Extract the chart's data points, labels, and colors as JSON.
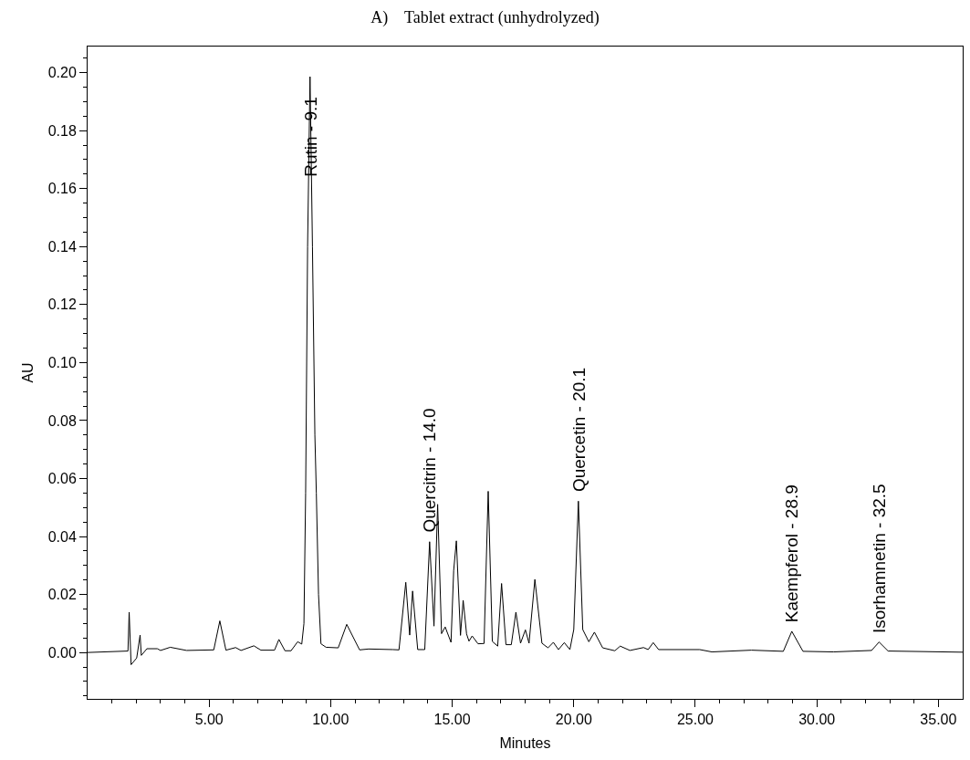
{
  "chart_data": {
    "type": "line",
    "title": "A)    Tablet extract (unhydrolyzed)",
    "xlabel": "Minutes",
    "ylabel": "AU",
    "series": [
      {
        "color": "#000000",
        "x": [
          0,
          1.66,
          1.71,
          1.79,
          2.02,
          2.16,
          2.21,
          2.44,
          2.87,
          3.0,
          3.4,
          4.07,
          5.19,
          5.44,
          5.69,
          6.09,
          6.31,
          6.84,
          7.13,
          7.69,
          7.87,
          8.12,
          8.37,
          8.64,
          8.81,
          8.9,
          8.97,
          9.05,
          9.15,
          9.25,
          9.35,
          9.41,
          9.5,
          9.6,
          9.81,
          10.31,
          10.66,
          11.19,
          11.56,
          12.56,
          12.81,
          13.09,
          13.25,
          13.37,
          13.58,
          13.87,
          14.07,
          14.25,
          14.4,
          14.56,
          14.71,
          14.95,
          15.06,
          15.17,
          15.34,
          15.45,
          15.59,
          15.69,
          15.82,
          16.06,
          16.31,
          16.48,
          16.65,
          16.87,
          17.03,
          17.21,
          17.43,
          17.62,
          17.81,
          18.01,
          18.16,
          18.4,
          18.69,
          18.94,
          19.16,
          19.37,
          19.61,
          19.84,
          20.0,
          20.19,
          20.37,
          20.62,
          20.85,
          21.19,
          21.69,
          21.91,
          22.31,
          22.87,
          23.06,
          23.27,
          23.49,
          25.18,
          25.68,
          27.31,
          28.62,
          28.97,
          29.43,
          30.68,
          32.25,
          32.56,
          32.93,
          36.0
        ],
        "values": [
          0,
          0.0005,
          0.0139,
          -0.0042,
          -0.0019,
          0.006,
          -0.001,
          0.0013,
          0.0013,
          0.0007,
          0.0018,
          0.0007,
          0.0009,
          0.0109,
          0.0008,
          0.0017,
          0.0007,
          0.0023,
          0.0008,
          0.0008,
          0.0045,
          0.0006,
          0.0006,
          0.0037,
          0.0029,
          0.01,
          0.055,
          0.14,
          0.1986,
          0.14,
          0.075,
          0.055,
          0.02,
          0.003,
          0.0018,
          0.0016,
          0.0097,
          0.0009,
          0.0012,
          0.001,
          0.0009,
          0.0242,
          0.006,
          0.0212,
          0.001,
          0.001,
          0.0382,
          0.0091,
          0.0511,
          0.0065,
          0.0088,
          0.0035,
          0.0283,
          0.0385,
          0.0059,
          0.018,
          0.0064,
          0.0039,
          0.0057,
          0.003,
          0.0031,
          0.0556,
          0.0038,
          0.0022,
          0.0238,
          0.0027,
          0.0027,
          0.0139,
          0.0032,
          0.0078,
          0.0032,
          0.0252,
          0.0032,
          0.0016,
          0.0035,
          0.001,
          0.0034,
          0.001,
          0.0079,
          0.0522,
          0.0079,
          0.0037,
          0.007,
          0.0016,
          0.0006,
          0.0022,
          0.0007,
          0.0017,
          0.001,
          0.0034,
          0.001,
          0.001,
          0.0002,
          0.0008,
          0.0004,
          0.0073,
          0.0004,
          0.0002,
          0.0007,
          0.0036,
          0.0005,
          0.0001
        ]
      }
    ],
    "annotations": [
      {
        "text": "Rutin - 9.1",
        "x": 9.15,
        "y": 0.1986
      },
      {
        "text": "Quercitrin - 14.0",
        "x": 14.07,
        "y": 0.0382
      },
      {
        "text": "Quercetin - 20.1",
        "x": 20.19,
        "y": 0.0522
      },
      {
        "text": "Kaempferol - 28.9",
        "x": 28.97,
        "y": 0.0073
      },
      {
        "text": "Isorhamnetin - 32.5",
        "x": 32.56,
        "y": 0.0036
      }
    ],
    "xlim": [
      0,
      36
    ],
    "xticks": [
      {
        "value": 1,
        "label": null
      },
      {
        "value": 2,
        "label": null
      },
      {
        "value": 3,
        "label": null
      },
      {
        "value": 4,
        "label": null
      },
      {
        "value": 5,
        "label": "5.00"
      },
      {
        "value": 6,
        "label": null
      },
      {
        "value": 7,
        "label": null
      },
      {
        "value": 8,
        "label": null
      },
      {
        "value": 9,
        "label": null
      },
      {
        "value": 10,
        "label": "10.00"
      },
      {
        "value": 11,
        "label": null
      },
      {
        "value": 12,
        "label": null
      },
      {
        "value": 13,
        "label": null
      },
      {
        "value": 14,
        "label": null
      },
      {
        "value": 15,
        "label": "15.00"
      },
      {
        "value": 16,
        "label": null
      },
      {
        "value": 17,
        "label": null
      },
      {
        "value": 18,
        "label": null
      },
      {
        "value": 19,
        "label": null
      },
      {
        "value": 20,
        "label": "20.00"
      },
      {
        "value": 21,
        "label": null
      },
      {
        "value": 22,
        "label": null
      },
      {
        "value": 23,
        "label": null
      },
      {
        "value": 24,
        "label": null
      },
      {
        "value": 25,
        "label": "25.00"
      },
      {
        "value": 26,
        "label": null
      },
      {
        "value": 27,
        "label": null
      },
      {
        "value": 28,
        "label": null
      },
      {
        "value": 29,
        "label": null
      },
      {
        "value": 30,
        "label": "30.00"
      },
      {
        "value": 31,
        "label": null
      },
      {
        "value": 32,
        "label": null
      },
      {
        "value": 33,
        "label": null
      },
      {
        "value": 34,
        "label": null
      },
      {
        "value": 35,
        "label": "35.00"
      }
    ],
    "ylim": [
      -0.016,
      0.209
    ],
    "yticks": [
      {
        "value": -0.015,
        "label": null
      },
      {
        "value": -0.01,
        "label": null
      },
      {
        "value": -0.005,
        "label": null
      },
      {
        "value": 0,
        "label": "0.00"
      },
      {
        "value": 0.005,
        "label": null
      },
      {
        "value": 0.01,
        "label": null
      },
      {
        "value": 0.015,
        "label": null
      },
      {
        "value": 0.02,
        "label": "0.02"
      },
      {
        "value": 0.025,
        "label": null
      },
      {
        "value": 0.03,
        "label": null
      },
      {
        "value": 0.035,
        "label": null
      },
      {
        "value": 0.04,
        "label": "0.04"
      },
      {
        "value": 0.045,
        "label": null
      },
      {
        "value": 0.05,
        "label": null
      },
      {
        "value": 0.055,
        "label": null
      },
      {
        "value": 0.06,
        "label": "0.06"
      },
      {
        "value": 0.065,
        "label": null
      },
      {
        "value": 0.07,
        "label": null
      },
      {
        "value": 0.075,
        "label": null
      },
      {
        "value": 0.08,
        "label": "0.08"
      },
      {
        "value": 0.085,
        "label": null
      },
      {
        "value": 0.09,
        "label": null
      },
      {
        "value": 0.095,
        "label": null
      },
      {
        "value": 0.1,
        "label": "0.10"
      },
      {
        "value": 0.105,
        "label": null
      },
      {
        "value": 0.11,
        "label": null
      },
      {
        "value": 0.115,
        "label": null
      },
      {
        "value": 0.12,
        "label": "0.12"
      },
      {
        "value": 0.125,
        "label": null
      },
      {
        "value": 0.13,
        "label": null
      },
      {
        "value": 0.135,
        "label": null
      },
      {
        "value": 0.14,
        "label": "0.14"
      },
      {
        "value": 0.145,
        "label": null
      },
      {
        "value": 0.15,
        "label": null
      },
      {
        "value": 0.155,
        "label": null
      },
      {
        "value": 0.16,
        "label": "0.16"
      },
      {
        "value": 0.165,
        "label": null
      },
      {
        "value": 0.17,
        "label": null
      },
      {
        "value": 0.175,
        "label": null
      },
      {
        "value": 0.18,
        "label": "0.18"
      },
      {
        "value": 0.185,
        "label": null
      },
      {
        "value": 0.19,
        "label": null
      },
      {
        "value": 0.195,
        "label": null
      },
      {
        "value": 0.2,
        "label": "0.20"
      },
      {
        "value": 0.205,
        "label": null
      }
    ],
    "line_style": "solid",
    "marker": "none"
  }
}
